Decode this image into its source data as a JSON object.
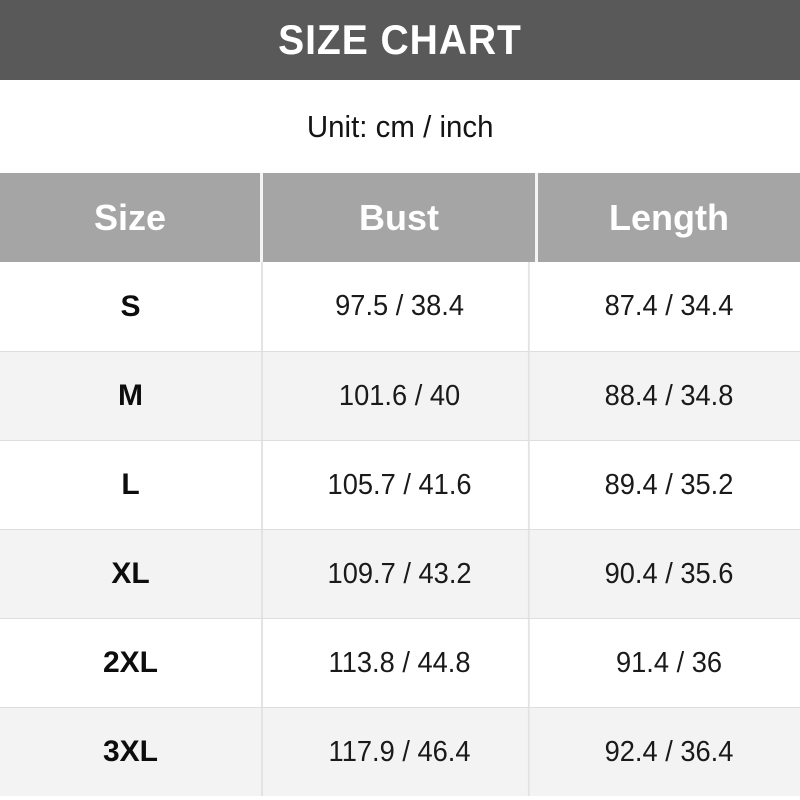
{
  "title": "SIZE CHART",
  "unit_label": "Unit: cm / inch",
  "table": {
    "columns": [
      "Size",
      "Bust",
      "Length"
    ],
    "rows": [
      {
        "size": "S",
        "bust": "97.5 / 38.4",
        "length": "87.4 / 34.4"
      },
      {
        "size": "M",
        "bust": "101.6 / 40",
        "length": "88.4 / 34.8"
      },
      {
        "size": "L",
        "bust": "105.7 / 41.6",
        "length": "89.4 / 35.2"
      },
      {
        "size": "XL",
        "bust": "109.7 / 43.2",
        "length": "90.4 / 35.6"
      },
      {
        "size": "2XL",
        "bust": "113.8 / 44.8",
        "length": "91.4 / 36"
      },
      {
        "size": "3XL",
        "bust": "117.9 / 46.4",
        "length": "92.4 / 36.4"
      }
    ]
  },
  "colors": {
    "title_bar_bg": "#595959",
    "title_text": "#ffffff",
    "table_header_bg": "#a5a5a5",
    "table_header_text": "#ffffff",
    "row_alt_bg": "#f3f3f3",
    "row_bg": "#ffffff",
    "divider": "#e3e3e3",
    "body_text": "#1a1a1a"
  },
  "chart_data": {
    "type": "table",
    "title": "SIZE CHART",
    "subtitle": "Unit: cm / inch",
    "columns": [
      "Size",
      "Bust",
      "Length"
    ],
    "rows": [
      [
        "S",
        "97.5 / 38.4",
        "87.4 / 34.4"
      ],
      [
        "M",
        "101.6 / 40",
        "88.4 / 34.8"
      ],
      [
        "L",
        "105.7 / 41.6",
        "89.4 / 35.2"
      ],
      [
        "XL",
        "109.7 / 43.2",
        "90.4 / 35.6"
      ],
      [
        "2XL",
        "113.8 / 44.8",
        "91.4 / 36"
      ],
      [
        "3XL",
        "117.9 / 46.4",
        "92.4 / 36.4"
      ]
    ]
  }
}
